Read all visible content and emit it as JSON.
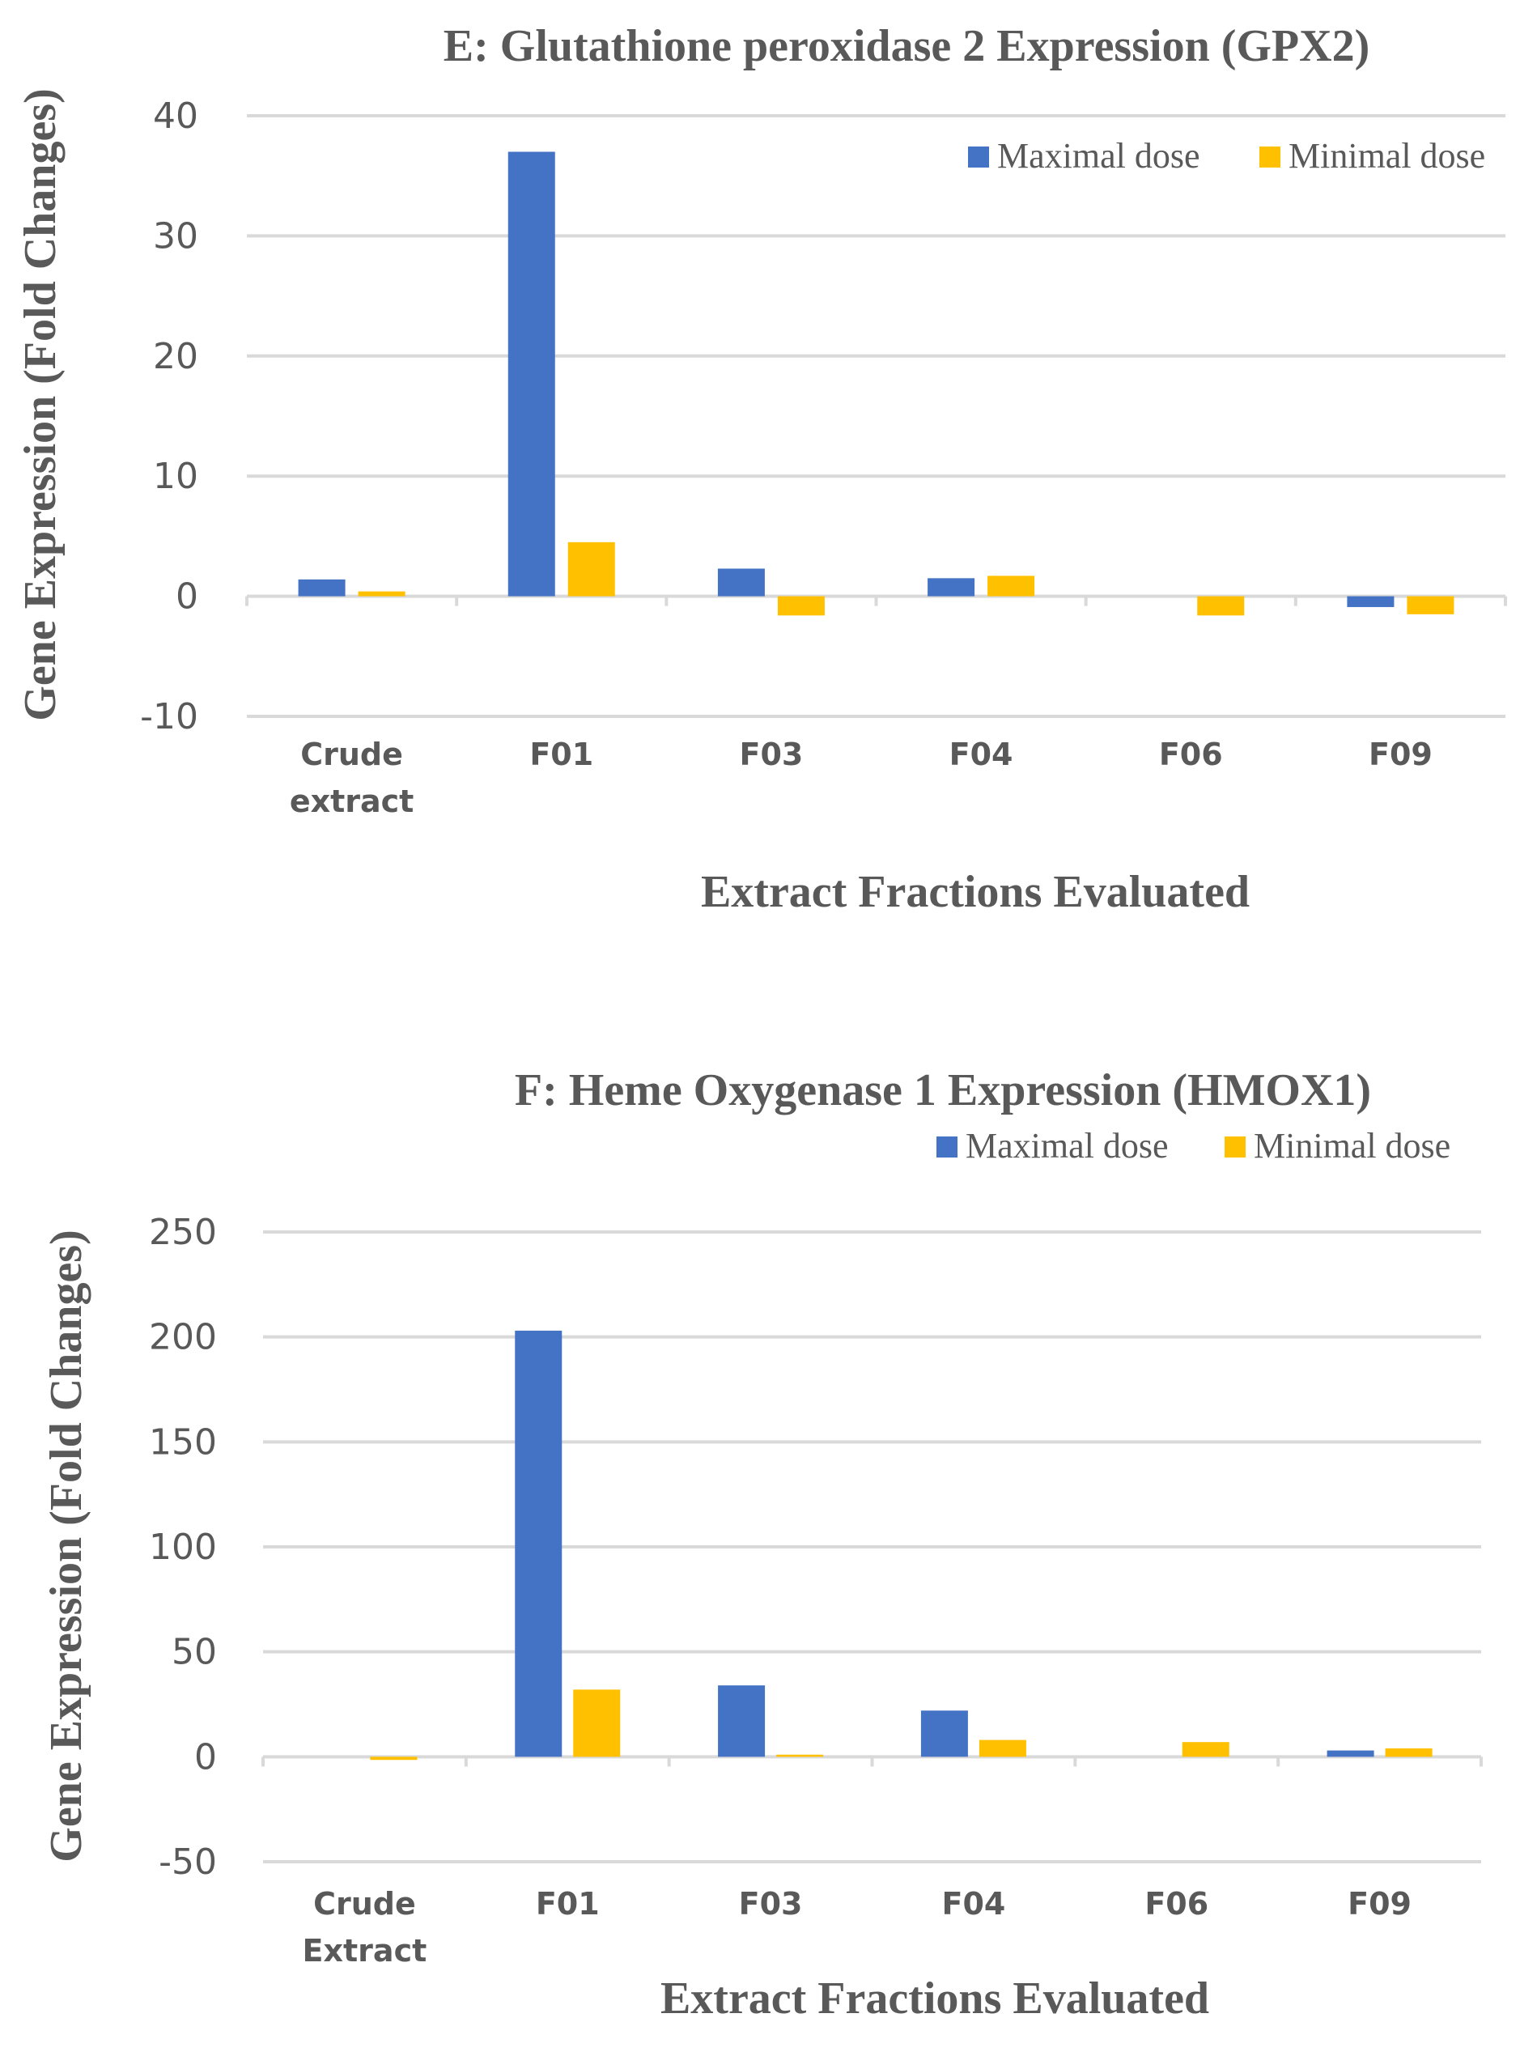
{
  "chart_data": [
    {
      "type": "bar",
      "title": "E: Glutathione peroxidase 2 Expression (GPX2)",
      "xlabel": "Extract Fractions Evaluated",
      "ylabel": "Gene Expression (Fold Changes)",
      "categories": [
        "Crude extract",
        "F01",
        "F03",
        "F04",
        "F06",
        "F09"
      ],
      "category_lines": [
        [
          "Crude",
          "extract"
        ],
        [
          "F01"
        ],
        [
          "F03"
        ],
        [
          "F04"
        ],
        [
          "F06"
        ],
        [
          "F09"
        ]
      ],
      "ylim": [
        -10,
        40
      ],
      "yticks": [
        -10,
        0,
        10,
        20,
        30,
        40
      ],
      "legend_position": "top-right",
      "series": [
        {
          "name": "Maximal dose",
          "color": "#4472C4",
          "values": [
            1.4,
            37.0,
            2.3,
            1.5,
            0.0,
            -0.9
          ]
        },
        {
          "name": "Minimal dose",
          "color": "#FFC000",
          "values": [
            0.4,
            4.5,
            -1.6,
            1.7,
            -1.6,
            -1.5
          ]
        }
      ]
    },
    {
      "type": "bar",
      "title": "F: Heme Oxygenase 1 Expression (HMOX1)",
      "xlabel": "Extract Fractions Evaluated",
      "ylabel": "Gene Expression (Fold Changes)",
      "categories": [
        "Crude Extract",
        "F01",
        "F03",
        "F04",
        "F06",
        "F09"
      ],
      "category_lines": [
        [
          "Crude",
          "Extract"
        ],
        [
          "F01"
        ],
        [
          "F03"
        ],
        [
          "F04"
        ],
        [
          "F06"
        ],
        [
          "F09"
        ]
      ],
      "ylim": [
        -50,
        250
      ],
      "yticks": [
        -50,
        0,
        50,
        100,
        150,
        200,
        250
      ],
      "legend_position": "top-right",
      "series": [
        {
          "name": "Maximal dose",
          "color": "#4472C4",
          "values": [
            0.0,
            203,
            34,
            22,
            0.0,
            3
          ]
        },
        {
          "name": "Minimal dose",
          "color": "#FFC000",
          "values": [
            -1.5,
            32,
            1,
            8,
            7,
            4
          ]
        }
      ]
    }
  ]
}
